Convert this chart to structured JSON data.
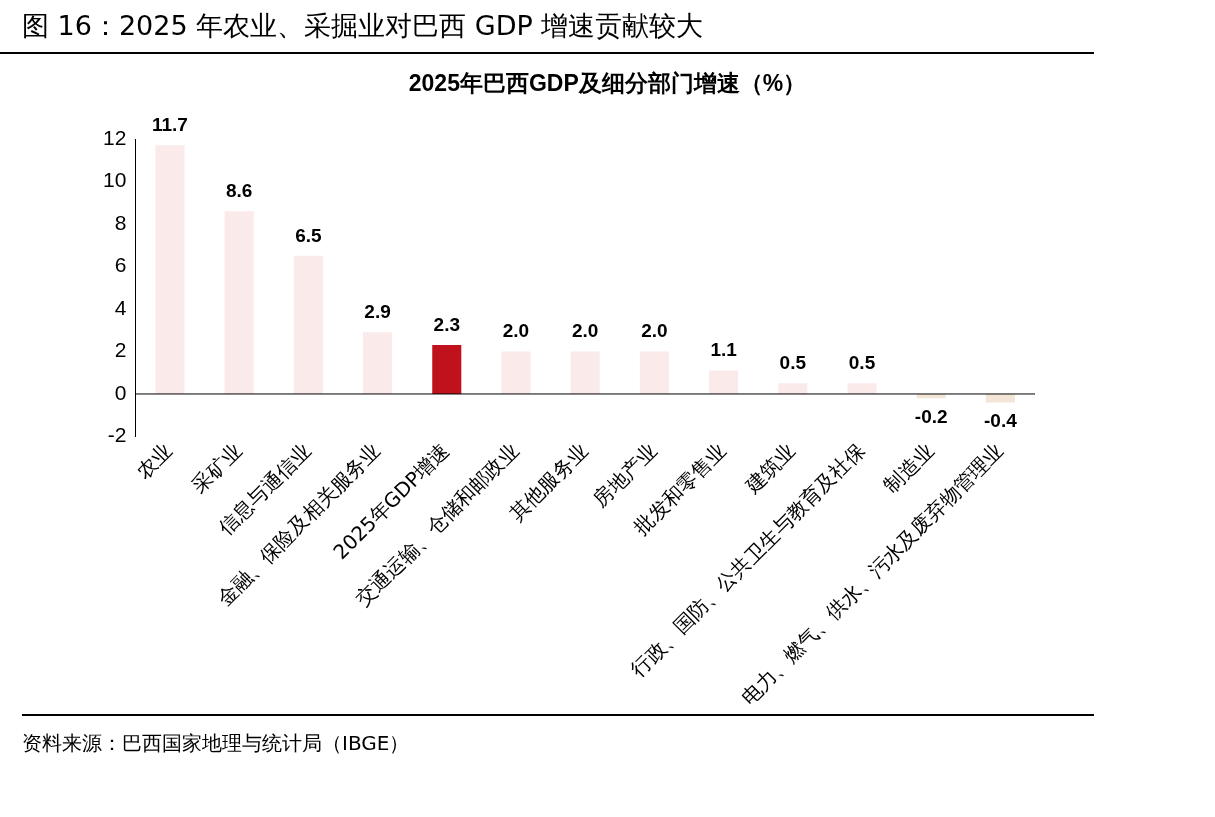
{
  "chart_data": {
    "type": "bar",
    "title": "图 16：2025 年农业、采掘业对巴西 GDP 增速贡献较大",
    "subtitle": "2025年巴西GDP及细分部门增速（%）",
    "categories": [
      "农业",
      "采矿业",
      "信息与通信业",
      "金融、保险及相关服务业",
      "2025年GDP增速",
      "交通运输、仓储和邮政业",
      "其他服务业",
      "房地产业",
      "批发和零售业",
      "建筑业",
      "行政、国防、公共卫生与教育及社保",
      "制造业",
      "电力、燃气、供水、污水及废弃物管理业"
    ],
    "values": [
      11.7,
      8.6,
      6.5,
      2.9,
      2.3,
      2.0,
      2.0,
      2.0,
      1.1,
      0.5,
      0.5,
      -0.2,
      -0.4
    ],
    "value_labels": [
      "11.7",
      "8.6",
      "6.5",
      "2.9",
      "2.3",
      "2.0",
      "2.0",
      "2.0",
      "1.1",
      "0.5",
      "0.5",
      "-0.2",
      "-0.4"
    ],
    "colors": [
      "#fbeaea",
      "#fbeaea",
      "#fbeaea",
      "#fbeaea",
      "#c0121c",
      "#fbeaea",
      "#fbeaea",
      "#fbeaea",
      "#fbeaea",
      "#fbeaea",
      "#fbeaea",
      "#f3e6d6",
      "#f3e6d6"
    ],
    "ylim": [
      -2,
      12
    ],
    "yticks": [
      -2,
      0,
      2,
      4,
      6,
      8,
      10,
      12
    ],
    "grid": false,
    "legend": false,
    "annotations": [
      "资料来源：巴西国家地理与统计局（IBGE）"
    ]
  }
}
